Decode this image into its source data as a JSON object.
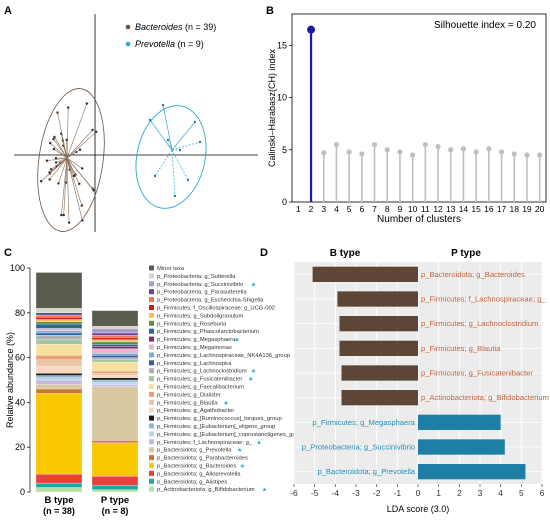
{
  "panels": {
    "A": {
      "letter": "A"
    },
    "B": {
      "letter": "B"
    },
    "C": {
      "letter": "C"
    },
    "D": {
      "letter": "D"
    }
  },
  "chart_data": [
    {
      "type": "scatter",
      "panel": "A",
      "title": "",
      "legend": [
        {
          "genus": "Bacteroides",
          "count_label": " (n = 39)",
          "color": "#6b5140"
        },
        {
          "genus": "Prevotella",
          "count_label": " (n = 9)",
          "color": "#2aa7d1"
        }
      ],
      "grid": false,
      "legend_position": "top-right"
    },
    {
      "type": "line",
      "panel": "B",
      "xlabel": "Number of clusters",
      "ylabel": "Calinski–Harabasz(CH) index",
      "annotation": "Silhouette index = 0.20",
      "x": [
        1,
        2,
        3,
        4,
        5,
        6,
        7,
        8,
        9,
        10,
        11,
        12,
        13,
        14,
        15,
        16,
        17,
        18,
        19,
        20
      ],
      "series": [
        {
          "x": [
            2
          ],
          "values": [
            16.5
          ],
          "color": "#1a1aa8"
        },
        {
          "x": [
            3,
            4,
            5,
            6,
            7,
            8,
            9,
            10,
            11,
            12,
            13,
            14,
            15,
            16,
            17,
            18,
            19,
            20
          ],
          "values": [
            4.7,
            5.5,
            4.8,
            4.6,
            5.5,
            5.0,
            4.8,
            4.5,
            5.5,
            5.3,
            5.0,
            5.1,
            4.8,
            5.1,
            4.8,
            4.6,
            4.5,
            4.5
          ],
          "color": "#bfbfbf"
        }
      ],
      "yticks": [
        0,
        5,
        10,
        15
      ],
      "ylim": [
        0,
        18
      ],
      "xlim": [
        0.5,
        20.5
      ]
    },
    {
      "type": "bar",
      "panel": "C",
      "ylabel": "Relative abundance (%)",
      "ylim": [
        0,
        100
      ],
      "yticks": [
        0,
        20,
        40,
        60,
        80,
        100
      ],
      "categories": [
        {
          "name": "B type",
          "n_label": "(n = 38)"
        },
        {
          "name": "P type",
          "n_label": "(n = 8)"
        }
      ],
      "taxa": [
        {
          "label": "Minor taxa",
          "color": "#5b5b50",
          "b": 16,
          "p": 7
        },
        {
          "label": "p_Proteobacteria; g_Sutterella",
          "color": "#d4d4c8",
          "b": 2,
          "p": 1
        },
        {
          "label": "p_Proteobacteria; g_Succinivibrio",
          "color": "#a89cc8",
          "b": 0,
          "p": 2,
          "star": true
        },
        {
          "label": "p_Proteobacteria; g_Parasutterella",
          "color": "#6b3fa0",
          "b": 1,
          "p": 1
        },
        {
          "label": "p_Proteobacteria; g_Escherichia-Shigella",
          "color": "#e87a4a",
          "b": 1,
          "p": 1
        },
        {
          "label": "p_Firmicutes; f_Oscillospiraceae; g_UCG-002",
          "color": "#c8201e",
          "b": 1,
          "p": 1
        },
        {
          "label": "p_Firmicutes; g_Subdoligranulum",
          "color": "#f0c060",
          "b": 1,
          "p": 1
        },
        {
          "label": "p_Firmicutes; g_Roseburia",
          "color": "#6a8a3a",
          "b": 1,
          "p": 1
        },
        {
          "label": "p_Firmicutes; g_Phascolarctobacterium",
          "color": "#2a6a8c",
          "b": 2,
          "p": 1
        },
        {
          "label": "p_Firmicutes; g_Megasphaera",
          "color": "#8a2a6a",
          "b": 0,
          "p": 1,
          "star": true
        },
        {
          "label": "p_Firmicutes; g_Megamonas",
          "color": "#e6b8d0",
          "b": 1,
          "p": 2
        },
        {
          "label": "p_Firmicutes; g_Lachnospiraceae_NK4A136_group",
          "color": "#7ab0d8",
          "b": 1,
          "p": 1
        },
        {
          "label": "p_Firmicutes; g_Lachnospira",
          "color": "#3a5aa0",
          "b": 1,
          "p": 1
        },
        {
          "label": "p_Firmicutes; g_Lachnoclostridium",
          "color": "#b0b0b0",
          "b": 2,
          "p": 1,
          "star": true
        },
        {
          "label": "p_Firmicutes; g_Fusicatenibacter",
          "color": "#a0c8a0",
          "b": 2,
          "p": 1,
          "star": true
        },
        {
          "label": "p_Firmicutes; g_Faecalibacterium",
          "color": "#f6e0a0",
          "b": 5,
          "p": 4
        },
        {
          "label": "p_Firmicutes; g_Dialister",
          "color": "#e8a070",
          "b": 2,
          "p": 1
        },
        {
          "label": "p_Firmicutes; g_Blautia",
          "color": "#e8c8a8",
          "b": 3,
          "p": 1,
          "star": true
        },
        {
          "label": "p_Firmicutes; g_Agathobacter",
          "color": "#f8d8c0",
          "b": 3,
          "p": 1
        },
        {
          "label": "p_Firmicutes; g_[Ruminococcus]_torques_group",
          "color": "#1a1a1a",
          "b": 1,
          "p": 1
        },
        {
          "label": "p_Firmicutes; g_[Eubacterium]_eligens_group",
          "color": "#90b8d8",
          "b": 1,
          "p": 1
        },
        {
          "label": "p_Firmicutes; g_[Eubacterium]_coprostanoligenes_group",
          "color": "#b8d8e8",
          "b": 1,
          "p": 1
        },
        {
          "label": "p_Firmicutes; f_Lachnospiraceae; g_",
          "color": "#c8b8e0",
          "b": 2,
          "p": 1,
          "star": true
        },
        {
          "label": "p_Bacteroidota; g_Prevotella",
          "color": "#d8c8a0",
          "b": 2,
          "p": 24,
          "star": true
        },
        {
          "label": "p_Bacteroidota; g_Parabacteroides",
          "color": "#c8782a",
          "b": 2,
          "p": 1
        },
        {
          "label": "p_Bacteroidota; g_Bacteroides",
          "color": "#f8c800",
          "b": 36,
          "p": 15,
          "star": true
        },
        {
          "label": "p_Bacteroidota; g_Alloprevotella",
          "color": "#e8403a",
          "b": 4,
          "p": 4
        },
        {
          "label": "p_Bacteroidota; g_Alistipes",
          "color": "#20a8a0",
          "b": 2,
          "p": 2
        },
        {
          "label": "p_Actinobacteriota; g_Bifidobacterium",
          "color": "#b8e0a0",
          "b": 2,
          "p": 1,
          "star": true
        }
      ]
    },
    {
      "type": "bar",
      "panel": "D",
      "orientation": "horizontal",
      "xlabel": "LDA score (3.0)",
      "xlim": [
        -6,
        6
      ],
      "xticks": [
        -6,
        -5,
        -4,
        -3,
        -2,
        -1,
        0,
        1,
        2,
        3,
        4,
        5,
        6
      ],
      "group_headers": {
        "left": "B type",
        "right": "P type"
      },
      "bars": [
        {
          "label": "p_Bacteroidota; g_Bacteroides",
          "value": -5.1,
          "group": "B"
        },
        {
          "label": "p_Firmicutes; f_Lachnospiraceae; g_",
          "value": -3.9,
          "group": "B"
        },
        {
          "label": "p_Firmicutes; g_Lachnoclostridium",
          "value": -3.8,
          "group": "B"
        },
        {
          "label": "p_Firmicutes; g_Blautia",
          "value": -3.8,
          "group": "B"
        },
        {
          "label": "p_Firmicutes; g_Fusicatenibacter",
          "value": -3.7,
          "group": "B"
        },
        {
          "label": "p_Actinobacteriota; g_Bifidobacterium",
          "value": -3.7,
          "group": "B"
        },
        {
          "label": "p_Firmicutes; g_Megasphaera",
          "value": 4.0,
          "group": "P"
        },
        {
          "label": "p_Proteobacteria; g_Succinivibrio",
          "value": 4.2,
          "group": "P"
        },
        {
          "label": "p_Bacteroidota; g_Prevotella",
          "value": 5.2,
          "group": "P"
        }
      ],
      "colors": {
        "B": "#5e4636",
        "P": "#1f7ea3",
        "B_text": "#c0603a",
        "P_text": "#1f8ab5"
      }
    }
  ]
}
